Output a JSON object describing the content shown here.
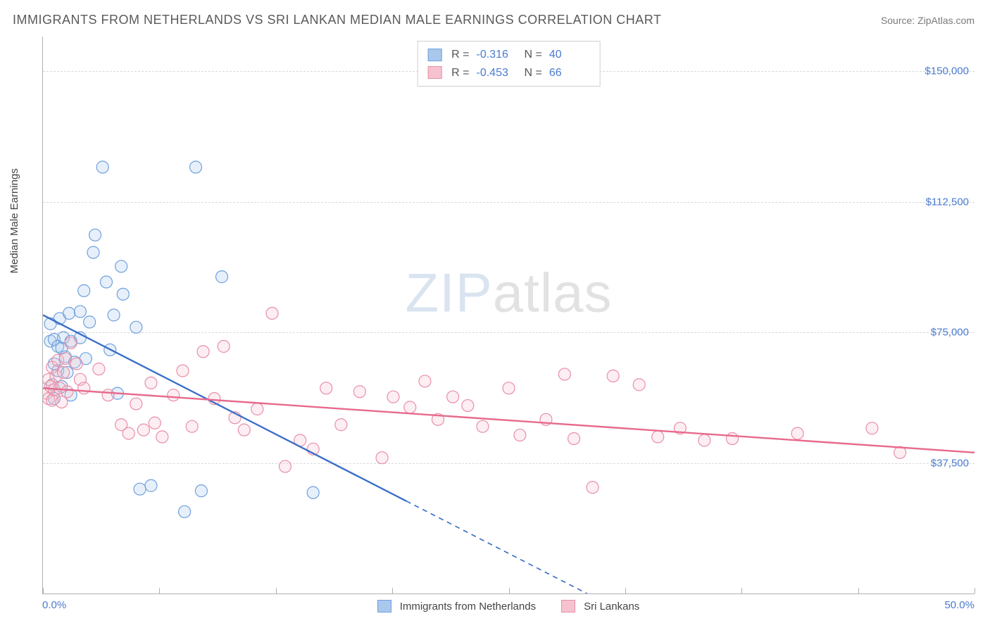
{
  "title": "IMMIGRANTS FROM NETHERLANDS VS SRI LANKAN MEDIAN MALE EARNINGS CORRELATION CHART",
  "source_label": "Source: ",
  "source_value": "ZipAtlas.com",
  "ylabel": "Median Male Earnings",
  "watermark_a": "ZIP",
  "watermark_b": "atlas",
  "chart": {
    "type": "scatter",
    "xlim": [
      0,
      50
    ],
    "ylim": [
      0,
      160000
    ],
    "x_tick_labels": [
      "0.0%",
      "50.0%"
    ],
    "x_minor_ticks": [
      0,
      6.25,
      12.5,
      18.75,
      25,
      31.25,
      37.5,
      43.75,
      50
    ],
    "y_gridlines": [
      37500,
      75000,
      112500,
      150000
    ],
    "y_tick_labels": [
      "$37,500",
      "$75,000",
      "$112,500",
      "$150,000"
    ],
    "background_color": "#ffffff",
    "grid_color": "#d9d9d9",
    "axis_color": "#b0b0b0",
    "marker_radius": 8.5,
    "marker_stroke_width": 1.2,
    "marker_fill_opacity": 0.28,
    "trend_line_width": 2.4,
    "trend_dash_pattern": "7,6",
    "series": [
      {
        "name": "Immigrants from Netherlands",
        "short": "netherlands",
        "stroke": "#6fa0dd",
        "fill": "#a9c8ec",
        "line_color": "#3b6fc7",
        "R": "-0.316",
        "N": "40",
        "trend": {
          "x1": 0,
          "y1": 80000,
          "x2": 50,
          "y2": -57000,
          "solid_until_x": 19.5
        },
        "points": [
          [
            0.4,
            77500
          ],
          [
            0.4,
            72500
          ],
          [
            0.5,
            60000
          ],
          [
            0.6,
            73000
          ],
          [
            0.6,
            66000
          ],
          [
            0.6,
            56000
          ],
          [
            0.8,
            71000
          ],
          [
            0.8,
            64000
          ],
          [
            0.9,
            79000
          ],
          [
            1.0,
            59500
          ],
          [
            1.0,
            70500
          ],
          [
            1.1,
            73500
          ],
          [
            1.2,
            68000
          ],
          [
            1.3,
            63500
          ],
          [
            1.4,
            80500
          ],
          [
            1.5,
            72500
          ],
          [
            1.5,
            57000
          ],
          [
            1.7,
            66500
          ],
          [
            2.0,
            73500
          ],
          [
            2.0,
            81000
          ],
          [
            2.2,
            87000
          ],
          [
            2.3,
            67500
          ],
          [
            2.5,
            78000
          ],
          [
            2.7,
            98000
          ],
          [
            2.8,
            103000
          ],
          [
            3.2,
            122500
          ],
          [
            3.4,
            89500
          ],
          [
            3.6,
            70000
          ],
          [
            3.8,
            80000
          ],
          [
            4.0,
            57500
          ],
          [
            4.2,
            94000
          ],
          [
            4.3,
            86000
          ],
          [
            5.0,
            76500
          ],
          [
            5.2,
            30000
          ],
          [
            5.8,
            31000
          ],
          [
            7.6,
            23500
          ],
          [
            8.2,
            122500
          ],
          [
            8.5,
            29500
          ],
          [
            9.6,
            91000
          ],
          [
            14.5,
            29000
          ]
        ]
      },
      {
        "name": "Sri Lankans",
        "short": "srilankans",
        "stroke": "#e98fa7",
        "fill": "#f6c2cf",
        "line_color": "#e76a8c",
        "R": "-0.453",
        "N": "66",
        "trend": {
          "x1": 0,
          "y1": 59000,
          "x2": 50,
          "y2": 40500,
          "solid_until_x": 50
        },
        "points": [
          [
            0.2,
            57500
          ],
          [
            0.3,
            61500
          ],
          [
            0.3,
            56000
          ],
          [
            0.4,
            59500
          ],
          [
            0.5,
            65000
          ],
          [
            0.5,
            55500
          ],
          [
            0.6,
            58500
          ],
          [
            0.7,
            62500
          ],
          [
            0.8,
            67000
          ],
          [
            0.9,
            59000
          ],
          [
            1.0,
            55000
          ],
          [
            1.1,
            63500
          ],
          [
            1.2,
            67500
          ],
          [
            1.3,
            58000
          ],
          [
            1.5,
            72000
          ],
          [
            1.8,
            66000
          ],
          [
            2.0,
            61500
          ],
          [
            2.2,
            59000
          ],
          [
            3.0,
            64500
          ],
          [
            3.5,
            57000
          ],
          [
            4.2,
            48500
          ],
          [
            4.6,
            46000
          ],
          [
            5.0,
            54500
          ],
          [
            5.4,
            47000
          ],
          [
            5.8,
            60500
          ],
          [
            6.0,
            49000
          ],
          [
            6.4,
            45000
          ],
          [
            7.0,
            57000
          ],
          [
            7.5,
            64000
          ],
          [
            8.0,
            48000
          ],
          [
            8.6,
            69500
          ],
          [
            9.2,
            56000
          ],
          [
            9.7,
            71000
          ],
          [
            10.3,
            50500
          ],
          [
            10.8,
            47000
          ],
          [
            11.5,
            53000
          ],
          [
            12.3,
            80500
          ],
          [
            13.0,
            36500
          ],
          [
            13.8,
            44000
          ],
          [
            14.5,
            41500
          ],
          [
            15.2,
            59000
          ],
          [
            16.0,
            48500
          ],
          [
            17.0,
            58000
          ],
          [
            18.2,
            39000
          ],
          [
            18.8,
            56500
          ],
          [
            19.7,
            53500
          ],
          [
            20.5,
            61000
          ],
          [
            21.2,
            50000
          ],
          [
            22.0,
            56500
          ],
          [
            22.8,
            54000
          ],
          [
            23.6,
            48000
          ],
          [
            25.0,
            59000
          ],
          [
            25.6,
            45500
          ],
          [
            27.0,
            50000
          ],
          [
            28.0,
            63000
          ],
          [
            28.5,
            44500
          ],
          [
            29.5,
            30500
          ],
          [
            30.6,
            62500
          ],
          [
            32.0,
            60000
          ],
          [
            33.0,
            45000
          ],
          [
            34.2,
            47500
          ],
          [
            35.5,
            44000
          ],
          [
            37.0,
            44500
          ],
          [
            40.5,
            46000
          ],
          [
            44.5,
            47500
          ],
          [
            46.0,
            40500
          ]
        ]
      }
    ]
  },
  "corrbox_labels": {
    "R": "R =",
    "N": "N ="
  },
  "colors": {
    "tick_text": "#4a7bd0",
    "title_text": "#5a5a5a",
    "body_text": "#444444",
    "source_text": "#7a7a7a"
  }
}
